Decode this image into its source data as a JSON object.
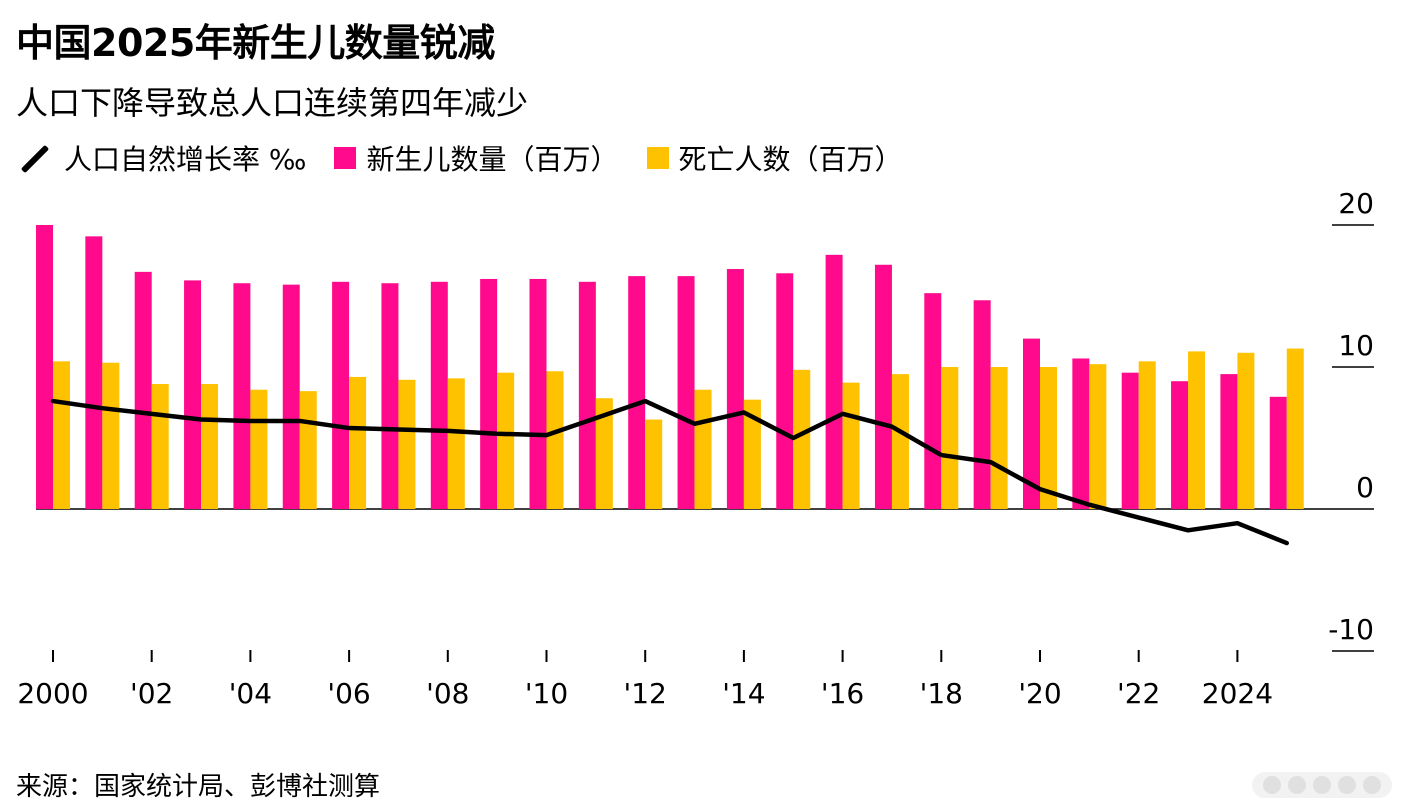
{
  "title": "中国2025年新生儿数量锐减",
  "subtitle": "人口下降导致总人口连续第四年减少",
  "legend": {
    "line_label": "人口自然增长率 ‰",
    "births_label": "新生儿数量（百万）",
    "deaths_label": "死亡人数（百万）"
  },
  "source": "来源：国家统计局、彭博社测算",
  "colors": {
    "births": "#ff0a8c",
    "deaths": "#ffc200",
    "line": "#000000"
  },
  "chart_data": {
    "type": "bar+line",
    "years": [
      2000,
      2001,
      2002,
      2003,
      2004,
      2005,
      2006,
      2007,
      2008,
      2009,
      2010,
      2011,
      2012,
      2013,
      2014,
      2015,
      2016,
      2017,
      2018,
      2019,
      2020,
      2021,
      2022,
      2023,
      2024,
      2025
    ],
    "series": [
      {
        "name": "新生儿数量（百万）",
        "type": "bar",
        "values": [
          20.0,
          19.2,
          16.7,
          16.1,
          15.9,
          15.8,
          16.0,
          15.9,
          16.0,
          16.2,
          16.2,
          16.0,
          16.4,
          16.4,
          16.9,
          16.6,
          17.9,
          17.2,
          15.2,
          14.7,
          12.0,
          10.6,
          9.6,
          9.0,
          9.5,
          7.9
        ]
      },
      {
        "name": "死亡人数（百万）",
        "type": "bar",
        "values": [
          10.4,
          10.3,
          8.8,
          8.8,
          8.4,
          8.3,
          9.3,
          9.1,
          9.2,
          9.6,
          9.7,
          7.8,
          6.3,
          8.4,
          7.7,
          9.8,
          8.9,
          9.5,
          10.0,
          10.0,
          10.0,
          10.2,
          10.4,
          11.1,
          11.0,
          11.3
        ]
      },
      {
        "name": "人口自然增长率 ‰",
        "type": "line",
        "values": [
          7.6,
          7.1,
          6.7,
          6.3,
          6.2,
          6.2,
          5.7,
          5.6,
          5.5,
          5.3,
          5.2,
          6.4,
          7.6,
          6.0,
          6.8,
          5.0,
          6.7,
          5.8,
          3.8,
          3.3,
          1.4,
          0.3,
          -0.6,
          -1.5,
          -1.0,
          -2.4
        ]
      }
    ],
    "y_ticks": [
      "20",
      "10",
      "0",
      "-10"
    ],
    "y_tick_values": [
      20,
      10,
      0,
      -10
    ],
    "ylim": [
      -10,
      20
    ],
    "x_tick_labels": [
      "2000",
      "'02",
      "'04",
      "'06",
      "'08",
      "'10",
      "'12",
      "'14",
      "'16",
      "'18",
      "'20",
      "'22",
      "2024"
    ],
    "x_tick_years": [
      2000,
      2002,
      2004,
      2006,
      2008,
      2010,
      2012,
      2014,
      2016,
      2018,
      2020,
      2022,
      2024
    ]
  }
}
